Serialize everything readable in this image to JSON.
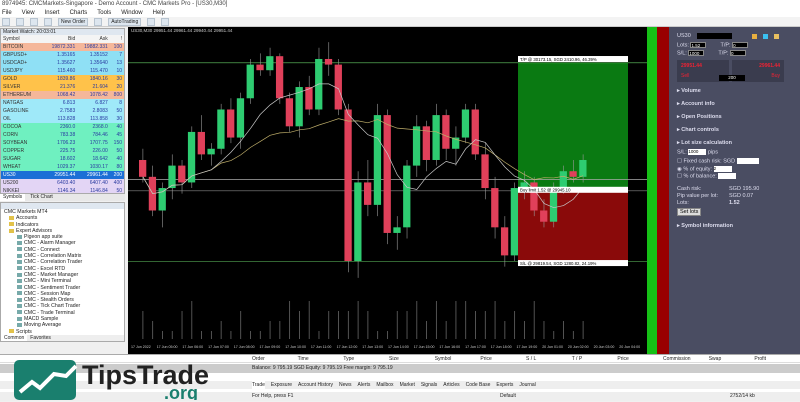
{
  "window": {
    "title": "8974945: CMCMarkets-Singapore - Demo Account - CMC Markets Pro - [US30,M30]"
  },
  "menu": [
    "File",
    "View",
    "Insert",
    "Charts",
    "Tools",
    "Window",
    "Help"
  ],
  "toolbar": {
    "new_order": "New Order",
    "auto_trading": "AutoTrading"
  },
  "market_watch": {
    "title": "Market Watch: 20:03:01",
    "columns": [
      "Symbol",
      "Bid",
      "Ask",
      "!"
    ],
    "rows": [
      {
        "s": "BITCOIN",
        "b": "19872.331",
        "a": "19882.331",
        "sp": "100",
        "c": "#f5b79a"
      },
      {
        "s": "GBPUSD+",
        "b": "1.35165",
        "a": "1.35152",
        "sp": "7",
        "c": "#8fe0f5"
      },
      {
        "s": "USDCAD+",
        "b": "1.35627",
        "a": "1.35640",
        "sp": "13",
        "c": "#8fe0f5"
      },
      {
        "s": "USDJPY",
        "b": "115.460",
        "a": "115.470",
        "sp": "10",
        "c": "#8fe0f5"
      },
      {
        "s": "GOLD",
        "b": "1839.86",
        "a": "1840.16",
        "sp": "30",
        "c": "#ffc24a"
      },
      {
        "s": "SILVER",
        "b": "21.376",
        "a": "21.604",
        "sp": "20",
        "c": "#ffc24a"
      },
      {
        "s": "ETHEREUM",
        "b": "1068.42",
        "a": "1078.42",
        "sp": "800",
        "c": "#f5b79a"
      },
      {
        "s": "NATGAS",
        "b": "6.813",
        "a": "6.827",
        "sp": "8",
        "c": "#9fe9f9"
      },
      {
        "s": "GASOLINE",
        "b": "2.7583",
        "a": "2.8083",
        "sp": "50",
        "c": "#9fe9f9"
      },
      {
        "s": "OIL",
        "b": "113.828",
        "a": "113.858",
        "sp": "30",
        "c": "#9fe9f9"
      },
      {
        "s": "COCOA",
        "b": "2360.0",
        "a": "2368.0",
        "sp": "40",
        "c": "#6ff0c0"
      },
      {
        "s": "CORN",
        "b": "783.38",
        "a": "784.46",
        "sp": "45",
        "c": "#6ff0c0"
      },
      {
        "s": "SOYBEAN",
        "b": "1706.23",
        "a": "1707.75",
        "sp": "150",
        "c": "#6ff0c0"
      },
      {
        "s": "COPPER",
        "b": "225.75",
        "a": "226.00",
        "sp": "50",
        "c": "#6ff0c0"
      },
      {
        "s": "SUGAR",
        "b": "18.602",
        "a": "18.642",
        "sp": "40",
        "c": "#6ff0c0"
      },
      {
        "s": "WHEAT",
        "b": "1029.37",
        "a": "1030.17",
        "sp": "80",
        "c": "#6ff0c0"
      },
      {
        "s": "US30",
        "b": "29951.44",
        "a": "29961.44",
        "sp": "200",
        "c": "#1c6fd6"
      },
      {
        "s": "US200",
        "b": "6403.40",
        "a": "6407.40",
        "sp": "400",
        "c": "#e3d5f5"
      },
      {
        "s": "NIKKEI",
        "b": "1146.34",
        "a": "1146.84",
        "sp": "50",
        "c": "#e3d5f5"
      }
    ],
    "tabs": [
      "Symbols",
      "Tick Chart"
    ]
  },
  "navigator": {
    "root": "CMC Markets MT4",
    "items": [
      {
        "t": "Accounts",
        "k": "folder",
        "l": 1
      },
      {
        "t": "Indicators",
        "k": "folder",
        "l": 1
      },
      {
        "t": "Expert Advisors",
        "k": "folder",
        "l": 1
      },
      {
        "t": "Pigeon app suite",
        "k": "ea",
        "l": 2
      },
      {
        "t": "CMC - Alarm Manager",
        "k": "ea",
        "l": 2
      },
      {
        "t": "CMC - Connect",
        "k": "ea",
        "l": 2
      },
      {
        "t": "CMC - Correlation Matrix",
        "k": "ea",
        "l": 2
      },
      {
        "t": "CMC - Correlation Trader",
        "k": "ea",
        "l": 2
      },
      {
        "t": "CMC - Excel RTD",
        "k": "ea",
        "l": 2
      },
      {
        "t": "CMC - Market Manager",
        "k": "ea",
        "l": 2
      },
      {
        "t": "CMC - Mini Terminal",
        "k": "ea",
        "l": 2
      },
      {
        "t": "CMC - Sentiment Trader",
        "k": "ea",
        "l": 2
      },
      {
        "t": "CMC - Session Map",
        "k": "ea",
        "l": 2
      },
      {
        "t": "CMC - Stealth Orders",
        "k": "ea",
        "l": 2
      },
      {
        "t": "CMC - Tick Chart Trader",
        "k": "ea",
        "l": 2
      },
      {
        "t": "CMC - Trade Terminal",
        "k": "ea",
        "l": 2
      },
      {
        "t": "MACD Sample",
        "k": "ea",
        "l": 2
      },
      {
        "t": "Moving Average",
        "k": "ea",
        "l": 2
      },
      {
        "t": "Scripts",
        "k": "folder",
        "l": 1
      }
    ],
    "tabs": [
      "Common",
      "Favorites"
    ]
  },
  "chart": {
    "header": "US30,M30  29951.44 29961.44 29940.44 29951.44",
    "tp_label": "T/P @ 30173.15, SGD 2410.96, 46.39%",
    "buy_label": "Buy limit 1.52 @ 29945.10",
    "sl_label": "S/L @ 29819.54, SGD 1280.82, 24.19%",
    "tp": 30173.15,
    "entry": 29945.1,
    "sl": 29819.54,
    "price_range": [
      29681,
      30237
    ],
    "colors": {
      "bull": "#2ecc71",
      "bear": "#e0405a",
      "ma": "#bfae6a",
      "ma2": "#c8c8c8"
    },
    "time_labels": [
      "17 Jun 2022",
      "17 Jun 05:00",
      "17 Jun 06:00",
      "17 Jun 07:00",
      "17 Jun 08:00",
      "17 Jun 09:00",
      "17 Jun 10:00",
      "17 Jun 11:00",
      "17 Jun 12:00",
      "17 Jun 13:00",
      "17 Jun 14:00",
      "17 Jun 15:00",
      "17 Jun 16:00",
      "17 Jun 17:00",
      "17 Jun 18:00",
      "17 Jun 19:00",
      "20 Jun 01:00",
      "20 Jun 02:00",
      "20 Jun 03:00",
      "20 Jun 04:00"
    ],
    "ohlc": [
      [
        30000,
        30020,
        29960,
        29970
      ],
      [
        29970,
        29990,
        29900,
        29910
      ],
      [
        29910,
        29960,
        29880,
        29950
      ],
      [
        29950,
        30010,
        29930,
        29990
      ],
      [
        29990,
        30000,
        29940,
        29960
      ],
      [
        29960,
        30060,
        29950,
        30050
      ],
      [
        30050,
        30080,
        30000,
        30010
      ],
      [
        30010,
        30030,
        29990,
        30020
      ],
      [
        30020,
        30100,
        30010,
        30090
      ],
      [
        30090,
        30110,
        30030,
        30040
      ],
      [
        30040,
        30120,
        30020,
        30110
      ],
      [
        30110,
        30180,
        30100,
        30170
      ],
      [
        30170,
        30190,
        30150,
        30160
      ],
      [
        30160,
        30200,
        30150,
        30185
      ],
      [
        30185,
        30190,
        30100,
        30110
      ],
      [
        30110,
        30120,
        30050,
        30060
      ],
      [
        30060,
        30140,
        30040,
        30130
      ],
      [
        30130,
        30150,
        30080,
        30090
      ],
      [
        30090,
        30200,
        30080,
        30180
      ],
      [
        30180,
        30210,
        30150,
        30170
      ],
      [
        30170,
        30180,
        30080,
        30090
      ],
      [
        30090,
        30100,
        29800,
        29820
      ],
      [
        29820,
        29980,
        29790,
        29960
      ],
      [
        29960,
        30000,
        29900,
        29920
      ],
      [
        29920,
        30100,
        29900,
        30080
      ],
      [
        30080,
        30090,
        29850,
        29870
      ],
      [
        29870,
        29900,
        29840,
        29880
      ],
      [
        29880,
        30000,
        29860,
        29990
      ],
      [
        29990,
        30080,
        29970,
        30060
      ],
      [
        30060,
        30070,
        29980,
        30000
      ],
      [
        30000,
        30100,
        29990,
        30080
      ],
      [
        30080,
        30090,
        30000,
        30020
      ],
      [
        30020,
        30060,
        29990,
        30040
      ],
      [
        30040,
        30100,
        30030,
        30090
      ],
      [
        30090,
        30100,
        30000,
        30010
      ],
      [
        30010,
        30030,
        29930,
        29950
      ],
      [
        29950,
        29970,
        29860,
        29880
      ],
      [
        29880,
        29900,
        29810,
        29830
      ],
      [
        29830,
        29960,
        29820,
        29950
      ],
      [
        29950,
        29980,
        29930,
        29960
      ],
      [
        29960,
        29970,
        29900,
        29910
      ],
      [
        29910,
        29930,
        29880,
        29890
      ],
      [
        29890,
        29960,
        29880,
        29950
      ],
      [
        29950,
        29990,
        29940,
        29980
      ],
      [
        29980,
        30000,
        29960,
        29970
      ],
      [
        29970,
        30010,
        29960,
        30000
      ]
    ]
  },
  "panel": {
    "symbol": "US30",
    "lots_label": "Lots:",
    "lots": "1.52",
    "sl_label": "S/L:",
    "sl": "1000",
    "tp_label": "T/P:",
    "tp": "0",
    "tp2_label": "T/P:",
    "tp2": "0",
    "sell_price": "29951.44",
    "buy_price": "29961.44",
    "sell": "Sell",
    "buy": "Buy",
    "spread": "200",
    "sections": [
      "Volume",
      "Account info",
      "Open Positions",
      "Chart controls",
      "Lot size calculation"
    ],
    "calc": {
      "sl_label": "S/L:",
      "sl": "1000",
      "sl_unit": "pips",
      "fixed": "Fixed cash risk: SGD",
      "equity": "% of equity:",
      "equity_val": "2",
      "balance": "% of balance:",
      "cash_risk_label": "Cash risk:",
      "cash_risk": "SGD 195.90",
      "pip_label": "Pip value per lot:",
      "pip": "SGD 0.07",
      "lots_label": "Lots:",
      "lots": "1.52",
      "set_lots": "Set lots"
    },
    "symbol_info": "Symbol information"
  },
  "terminal": {
    "columns": [
      "Order",
      "Time",
      "Type",
      "Size",
      "Symbol",
      "Price",
      "S / L",
      "T / P",
      "Price",
      "Commission",
      "Swap",
      "Profit"
    ],
    "balance": "Balance: 9 795.19 SGD  Equity: 9 795.19  Free margin: 9 795.19",
    "tabs": [
      "Trade",
      "Exposure",
      "Account History",
      "News",
      "Alerts",
      "Mailbox",
      "Market",
      "Signals",
      "Articles",
      "Code Base",
      "Experts",
      "Journal"
    ],
    "status": {
      "help": "For Help, press F1",
      "profile": "Default",
      "traffic": "2752/14 kb"
    }
  },
  "watermark": {
    "brand": "TipsTrade",
    ".org": ".org",
    "color": "#1a7f6e"
  }
}
